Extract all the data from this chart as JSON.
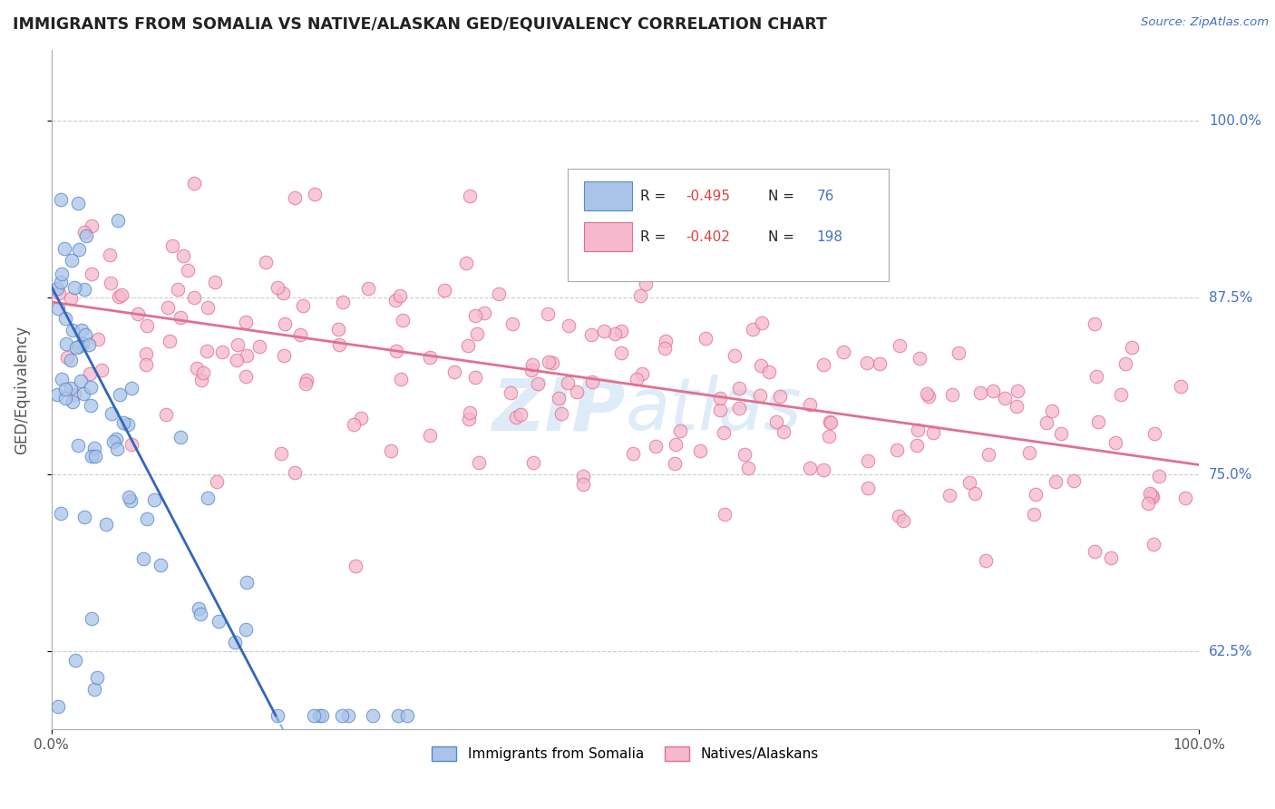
{
  "title": "IMMIGRANTS FROM SOMALIA VS NATIVE/ALASKAN GED/EQUIVALENCY CORRELATION CHART",
  "source_text": "Source: ZipAtlas.com",
  "ylabel": "GED/Equivalency",
  "ytick_values": [
    0.625,
    0.75,
    0.875,
    1.0
  ],
  "xlim": [
    0.0,
    1.0
  ],
  "ylim": [
    0.57,
    1.05
  ],
  "color_somalia": "#aac4e8",
  "color_somalia_edge": "#5588cc",
  "color_somalia_line": "#3366bb",
  "color_native": "#f5b8cc",
  "color_native_edge": "#e07090",
  "color_native_line": "#e07090",
  "watermark_color": "#c8dff5",
  "somalia_line_start_y": 0.883,
  "somalia_line_slope": -1.55,
  "native_line_start_y": 0.872,
  "native_line_slope": -0.115
}
